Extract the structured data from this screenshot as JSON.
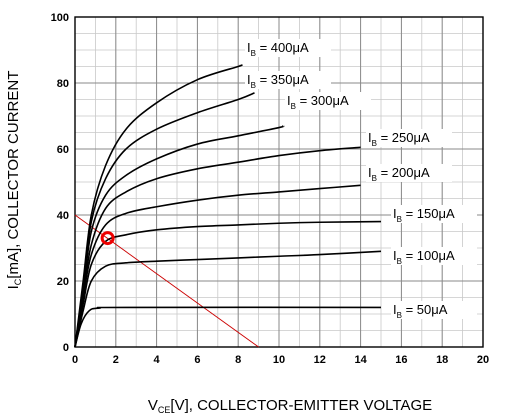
{
  "chart_data": {
    "type": "line",
    "title": "",
    "xlabel": {
      "main": "V",
      "sub": "CE",
      "rest": "[V], COLLECTOR-EMITTER VOLTAGE"
    },
    "ylabel": {
      "main": "I",
      "sub": "C",
      "rest": "[mA], COLLECTOR CURRENT"
    },
    "xlim": [
      0,
      20
    ],
    "ylim": [
      0,
      100
    ],
    "xticks": [
      0,
      2,
      4,
      6,
      8,
      10,
      12,
      14,
      16,
      18,
      20
    ],
    "yticks": [
      0,
      20,
      40,
      60,
      80,
      100
    ],
    "grid": true,
    "series": [
      {
        "label": "400μA",
        "points": [
          [
            0,
            0
          ],
          [
            0.4,
            20
          ],
          [
            0.8,
            40
          ],
          [
            1.5,
            55
          ],
          [
            2.5,
            66
          ],
          [
            4,
            74
          ],
          [
            6,
            81
          ],
          [
            8,
            85
          ],
          [
            8.1,
            85.3
          ]
        ]
      },
      {
        "label": "350μA",
        "points": [
          [
            0,
            0
          ],
          [
            0.4,
            18
          ],
          [
            0.8,
            38
          ],
          [
            1.5,
            51
          ],
          [
            2.5,
            60
          ],
          [
            4,
            66
          ],
          [
            6,
            71
          ],
          [
            8,
            75
          ],
          [
            8.8,
            77
          ]
        ]
      },
      {
        "label": "300μA",
        "points": [
          [
            0,
            0
          ],
          [
            0.4,
            17
          ],
          [
            0.8,
            35
          ],
          [
            1.5,
            46
          ],
          [
            2.5,
            52
          ],
          [
            4,
            57
          ],
          [
            6,
            61.5
          ],
          [
            8,
            64
          ],
          [
            10,
            66.5
          ],
          [
            10.2,
            67
          ]
        ]
      },
      {
        "label": "250μA",
        "points": [
          [
            0,
            0
          ],
          [
            0.4,
            16
          ],
          [
            0.8,
            31
          ],
          [
            1.5,
            42
          ],
          [
            2.5,
            47
          ],
          [
            4,
            51
          ],
          [
            6,
            54
          ],
          [
            8,
            56
          ],
          [
            10,
            58
          ],
          [
            12,
            59.5
          ],
          [
            14,
            60.5
          ]
        ]
      },
      {
        "label": "200μA",
        "points": [
          [
            0,
            0
          ],
          [
            0.4,
            15
          ],
          [
            0.8,
            28
          ],
          [
            1.5,
            37
          ],
          [
            2.5,
            40.5
          ],
          [
            4,
            42.5
          ],
          [
            6,
            44.5
          ],
          [
            8,
            46
          ],
          [
            10,
            47
          ],
          [
            12,
            48
          ],
          [
            14,
            49
          ]
        ]
      },
      {
        "label": "150μA",
        "points": [
          [
            0,
            0
          ],
          [
            0.4,
            13
          ],
          [
            0.8,
            25
          ],
          [
            1.5,
            32
          ],
          [
            2.5,
            34
          ],
          [
            4,
            35.5
          ],
          [
            6,
            36.5
          ],
          [
            8,
            37
          ],
          [
            10,
            37.5
          ],
          [
            12,
            37.8
          ],
          [
            15,
            38
          ]
        ]
      },
      {
        "label": "100μA",
        "points": [
          [
            0,
            0
          ],
          [
            0.4,
            11
          ],
          [
            0.8,
            20
          ],
          [
            1.5,
            24.5
          ],
          [
            2.5,
            25.5
          ],
          [
            4,
            26
          ],
          [
            6,
            26.5
          ],
          [
            8,
            27
          ],
          [
            10,
            27.5
          ],
          [
            12,
            28
          ],
          [
            15,
            29
          ]
        ]
      },
      {
        "label": "50μA",
        "points": [
          [
            0,
            0
          ],
          [
            0.3,
            7
          ],
          [
            0.7,
            11
          ],
          [
            1.2,
            11.8
          ],
          [
            2.5,
            12
          ],
          [
            15,
            12
          ]
        ]
      }
    ],
    "curve_label_prefix": {
      "main": "I",
      "sub": "B",
      "sep": " = "
    },
    "load_line": {
      "points": [
        [
          0,
          40
        ],
        [
          9,
          0
        ]
      ],
      "color": "#cc0000"
    },
    "operating_point": {
      "x": 1.6,
      "y": 33,
      "color": "#ee0000"
    }
  }
}
